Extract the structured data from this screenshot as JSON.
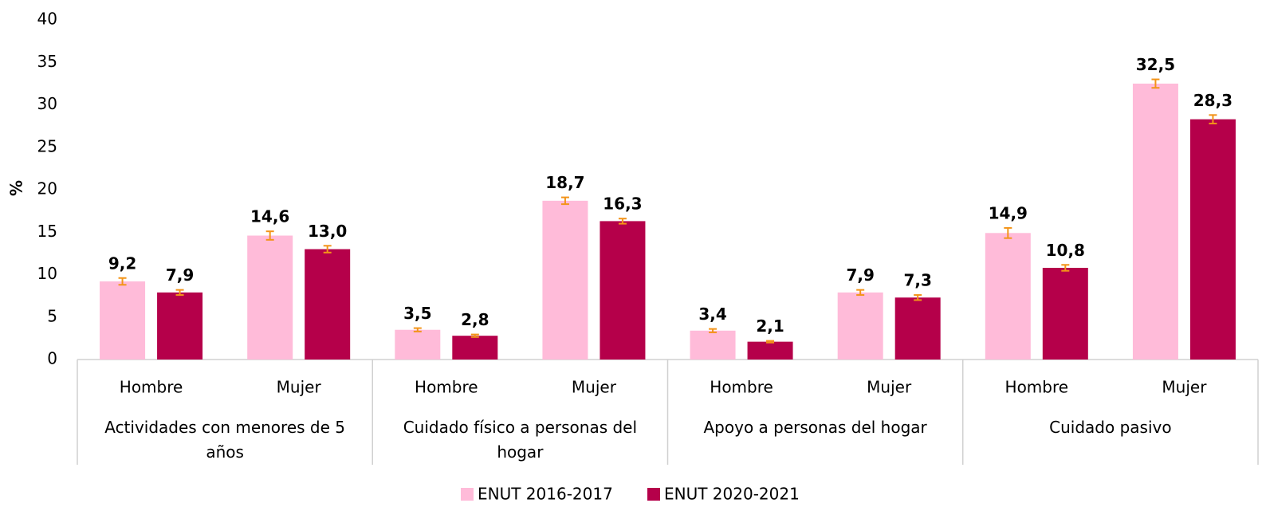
{
  "chart_data": {
    "type": "bar",
    "y_label": "%",
    "categories": [
      "Hombre",
      "Mujer",
      "Hombre",
      "Mujer",
      "Hombre",
      "Mujer",
      "Hombre",
      "Mujer"
    ],
    "groups": [
      "Actividades con menores de 5 años",
      "Cuidado físico a personas del hogar",
      "Apoyo a personas del hogar",
      "Cuidado pasivo"
    ],
    "series": [
      {
        "name": "ENUT 2016-2017",
        "color": "#ffbbd9",
        "values": [
          9.2,
          14.6,
          3.5,
          18.7,
          3.4,
          7.9,
          14.9,
          32.5
        ],
        "value_labels": [
          "9,2",
          "14,6",
          "3,5",
          "18,7",
          "3,4",
          "7,9",
          "14,9",
          "32,5"
        ],
        "errors": [
          0.4,
          0.5,
          0.2,
          0.4,
          0.2,
          0.3,
          0.6,
          0.5
        ]
      },
      {
        "name": "ENUT 2020-2021",
        "color": "#b5004a",
        "values": [
          7.9,
          13.0,
          2.8,
          16.3,
          2.1,
          7.3,
          10.8,
          28.3
        ],
        "value_labels": [
          "7,9",
          "13,0",
          "2,8",
          "16,3",
          "2,1",
          "7,3",
          "10,8",
          "28,3"
        ],
        "errors": [
          0.3,
          0.4,
          0.15,
          0.3,
          0.1,
          0.3,
          0.35,
          0.5
        ]
      }
    ],
    "error_color": "#f39419",
    "ylim": [
      0,
      40
    ],
    "yticks": [
      0,
      5,
      10,
      15,
      20,
      25,
      30,
      35,
      40
    ],
    "grid": false,
    "legend": "bottom"
  }
}
